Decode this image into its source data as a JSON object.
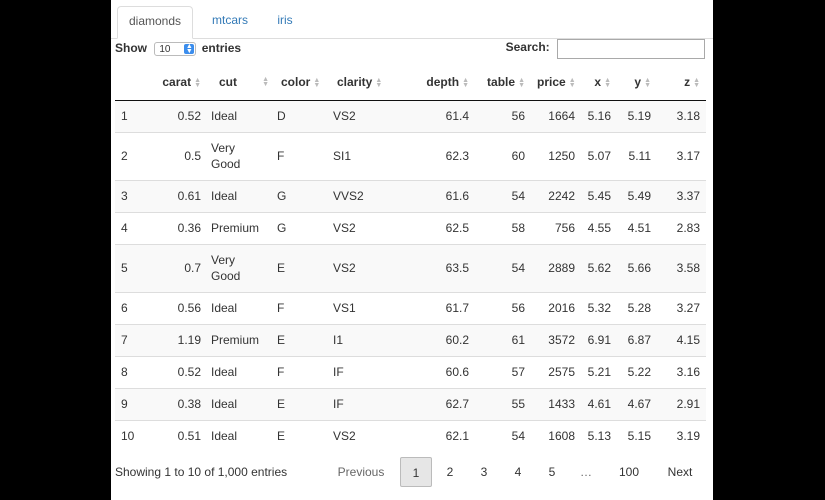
{
  "tabs": [
    "diamonds",
    "mtcars",
    "iris"
  ],
  "length": {
    "label_show": "Show",
    "value": "10",
    "label_entries": "entries"
  },
  "search": {
    "label": "Search:",
    "value": ""
  },
  "columns": [
    "",
    "carat",
    "cut",
    "color",
    "clarity",
    "depth",
    "table",
    "price",
    "x",
    "y",
    "z"
  ],
  "rows": [
    [
      "1",
      "0.52",
      "Ideal",
      "D",
      "VS2",
      "61.4",
      "56",
      "1664",
      "5.16",
      "5.19",
      "3.18"
    ],
    [
      "2",
      "0.5",
      "Very Good",
      "F",
      "SI1",
      "62.3",
      "60",
      "1250",
      "5.07",
      "5.11",
      "3.17"
    ],
    [
      "3",
      "0.61",
      "Ideal",
      "G",
      "VVS2",
      "61.6",
      "54",
      "2242",
      "5.45",
      "5.49",
      "3.37"
    ],
    [
      "4",
      "0.36",
      "Premium",
      "G",
      "VS2",
      "62.5",
      "58",
      "756",
      "4.55",
      "4.51",
      "2.83"
    ],
    [
      "5",
      "0.7",
      "Very Good",
      "E",
      "VS2",
      "63.5",
      "54",
      "2889",
      "5.62",
      "5.66",
      "3.58"
    ],
    [
      "6",
      "0.56",
      "Ideal",
      "F",
      "VS1",
      "61.7",
      "56",
      "2016",
      "5.32",
      "5.28",
      "3.27"
    ],
    [
      "7",
      "1.19",
      "Premium",
      "E",
      "I1",
      "60.2",
      "61",
      "3572",
      "6.91",
      "6.87",
      "4.15"
    ],
    [
      "8",
      "0.52",
      "Ideal",
      "F",
      "IF",
      "60.6",
      "57",
      "2575",
      "5.21",
      "5.22",
      "3.16"
    ],
    [
      "9",
      "0.38",
      "Ideal",
      "E",
      "IF",
      "62.7",
      "55",
      "1433",
      "4.61",
      "4.67",
      "2.91"
    ],
    [
      "10",
      "0.51",
      "Ideal",
      "E",
      "VS2",
      "62.1",
      "54",
      "1608",
      "5.13",
      "5.15",
      "3.19"
    ]
  ],
  "info": "Showing 1 to 10 of 1,000 entries",
  "pagination": {
    "previous": "Previous",
    "pages": [
      "1",
      "2",
      "3",
      "4",
      "5",
      "…",
      "100"
    ],
    "next": "Next"
  },
  "icons": {
    "sort": "sort-both-icon",
    "select": "select-arrows-icon"
  },
  "colors": {
    "link": "#337ab7",
    "stripe": "#f9f9f9",
    "select_accent": "#3b8ded"
  }
}
